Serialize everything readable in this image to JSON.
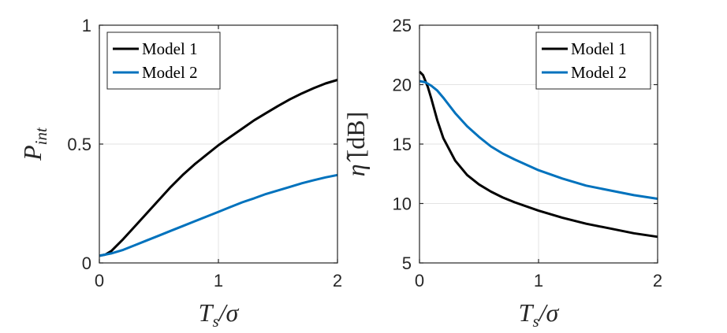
{
  "chart_data": [
    {
      "type": "line",
      "xlabel_parts": {
        "base": "T",
        "sub": "s",
        "rest": "/σ"
      },
      "ylabel_parts": {
        "base": "P",
        "sub": "int"
      },
      "xlim": [
        0,
        2
      ],
      "ylim": [
        0,
        1
      ],
      "xticks": [
        "0",
        "1",
        "2"
      ],
      "yticks": [
        "0",
        "0.5",
        "1"
      ],
      "grid": true,
      "legend_position": "top-left",
      "series": [
        {
          "name": "Model 1",
          "color": "#000000",
          "x": [
            0,
            0.05,
            0.1,
            0.2,
            0.3,
            0.4,
            0.5,
            0.6,
            0.7,
            0.8,
            0.9,
            1.0,
            1.1,
            1.2,
            1.3,
            1.4,
            1.5,
            1.6,
            1.7,
            1.8,
            1.9,
            2.0
          ],
          "y": [
            0.03,
            0.035,
            0.05,
            0.1,
            0.155,
            0.21,
            0.265,
            0.32,
            0.37,
            0.415,
            0.455,
            0.495,
            0.53,
            0.565,
            0.6,
            0.63,
            0.66,
            0.688,
            0.713,
            0.735,
            0.755,
            0.77
          ]
        },
        {
          "name": "Model 2",
          "color": "#0072BD",
          "x": [
            0,
            0.1,
            0.2,
            0.3,
            0.4,
            0.5,
            0.6,
            0.7,
            0.8,
            0.9,
            1.0,
            1.1,
            1.2,
            1.3,
            1.4,
            1.5,
            1.6,
            1.7,
            1.8,
            1.9,
            2.0
          ],
          "y": [
            0.03,
            0.04,
            0.055,
            0.075,
            0.095,
            0.115,
            0.135,
            0.155,
            0.175,
            0.195,
            0.215,
            0.235,
            0.255,
            0.272,
            0.29,
            0.305,
            0.32,
            0.335,
            0.348,
            0.36,
            0.37
          ]
        }
      ]
    },
    {
      "type": "line",
      "xlabel_parts": {
        "base": "T",
        "sub": "s",
        "rest": "/σ"
      },
      "ylabel_parts": {
        "base": "η̂",
        "rest": " [dB]"
      },
      "xlim": [
        0,
        2
      ],
      "ylim": [
        5,
        25
      ],
      "xticks": [
        "0",
        "1",
        "2"
      ],
      "yticks": [
        "5",
        "10",
        "15",
        "20",
        "25"
      ],
      "grid": true,
      "legend_position": "top-right",
      "series": [
        {
          "name": "Model 1",
          "color": "#000000",
          "x": [
            0,
            0.03,
            0.07,
            0.1,
            0.15,
            0.2,
            0.3,
            0.4,
            0.5,
            0.6,
            0.7,
            0.8,
            1.0,
            1.2,
            1.4,
            1.6,
            1.8,
            2.0
          ],
          "y": [
            21.1,
            20.8,
            19.8,
            18.8,
            17.0,
            15.5,
            13.6,
            12.4,
            11.6,
            11.0,
            10.5,
            10.1,
            9.4,
            8.8,
            8.3,
            7.9,
            7.5,
            7.2
          ]
        },
        {
          "name": "Model 2",
          "color": "#0072BD",
          "x": [
            0,
            0.05,
            0.1,
            0.15,
            0.2,
            0.3,
            0.4,
            0.5,
            0.6,
            0.7,
            0.8,
            1.0,
            1.2,
            1.4,
            1.6,
            1.8,
            2.0
          ],
          "y": [
            20.3,
            20.2,
            19.9,
            19.5,
            18.9,
            17.6,
            16.5,
            15.6,
            14.8,
            14.2,
            13.7,
            12.8,
            12.1,
            11.5,
            11.1,
            10.7,
            10.4
          ]
        }
      ]
    }
  ]
}
